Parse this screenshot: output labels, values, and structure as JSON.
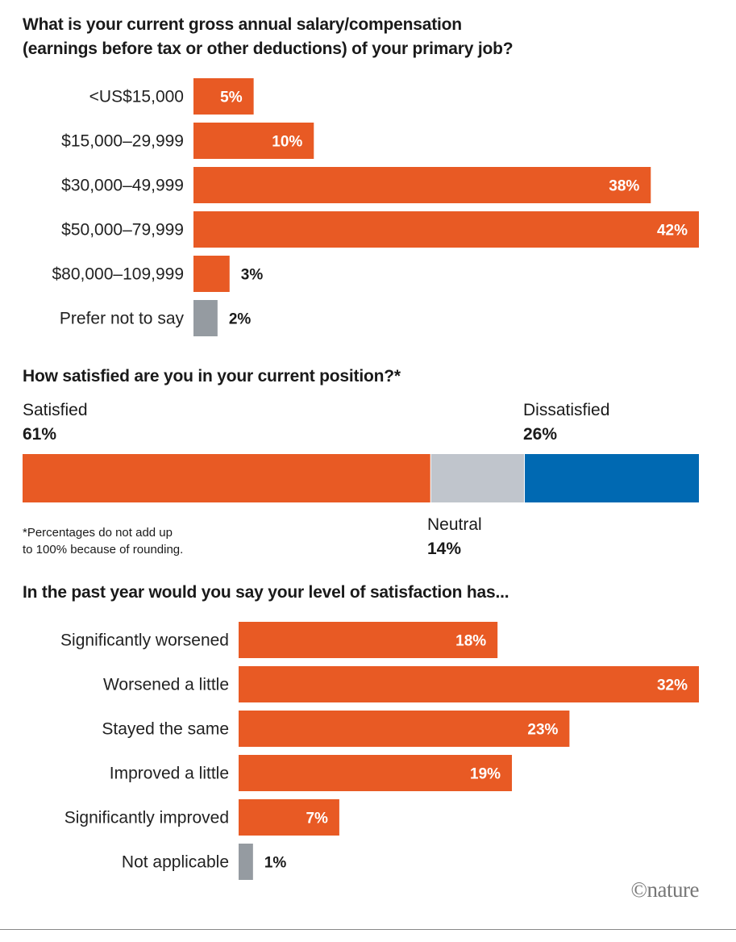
{
  "colors": {
    "orange": "#e85a24",
    "gray": "#959ba1",
    "neutral": "#c0c5cc",
    "blue": "#0069b2"
  },
  "chart_data": [
    {
      "type": "bar",
      "orientation": "horizontal",
      "title": "What is your current gross annual salary/compensation (earnings before tax or other deductions) of your primary job?",
      "title_lines": [
        "What is your current gross annual salary/compensation",
        "(earnings before tax or other deductions) of your primary job?"
      ],
      "categories": [
        "<US$15,000",
        "$15,000–29,999",
        "$30,000–49,999",
        "$50,000–79,999",
        "$80,000–109,999",
        "Prefer not to say"
      ],
      "values": [
        5,
        10,
        38,
        42,
        3,
        2
      ],
      "labels": [
        "5%",
        "10%",
        "38%",
        "42%",
        "3%",
        "2%"
      ],
      "unit": "%",
      "xlim": [
        0,
        42
      ]
    },
    {
      "type": "bar",
      "orientation": "stacked-horizontal",
      "title": "How satisfied are you in your current position?*",
      "segments": [
        {
          "name": "Satisfied",
          "value": 61,
          "label": "61%"
        },
        {
          "name": "Neutral",
          "value": 14,
          "label": "14%"
        },
        {
          "name": "Dissatisfied",
          "value": 26,
          "label": "26%"
        }
      ],
      "note_lines": [
        "*Percentages do not add up",
        "to 100% because of rounding."
      ],
      "unit": "%"
    },
    {
      "type": "bar",
      "orientation": "horizontal",
      "title": "In the past year would you say your level of satisfaction has...",
      "categories": [
        "Significantly worsened",
        "Worsened a little",
        "Stayed the same",
        "Improved a little",
        "Significantly improved",
        "Not applicable"
      ],
      "values": [
        18,
        32,
        23,
        19,
        7,
        1
      ],
      "labels": [
        "18%",
        "32%",
        "23%",
        "19%",
        "7%",
        "1%"
      ],
      "unit": "%",
      "xlim": [
        0,
        32
      ]
    }
  ],
  "credit": "©nature"
}
